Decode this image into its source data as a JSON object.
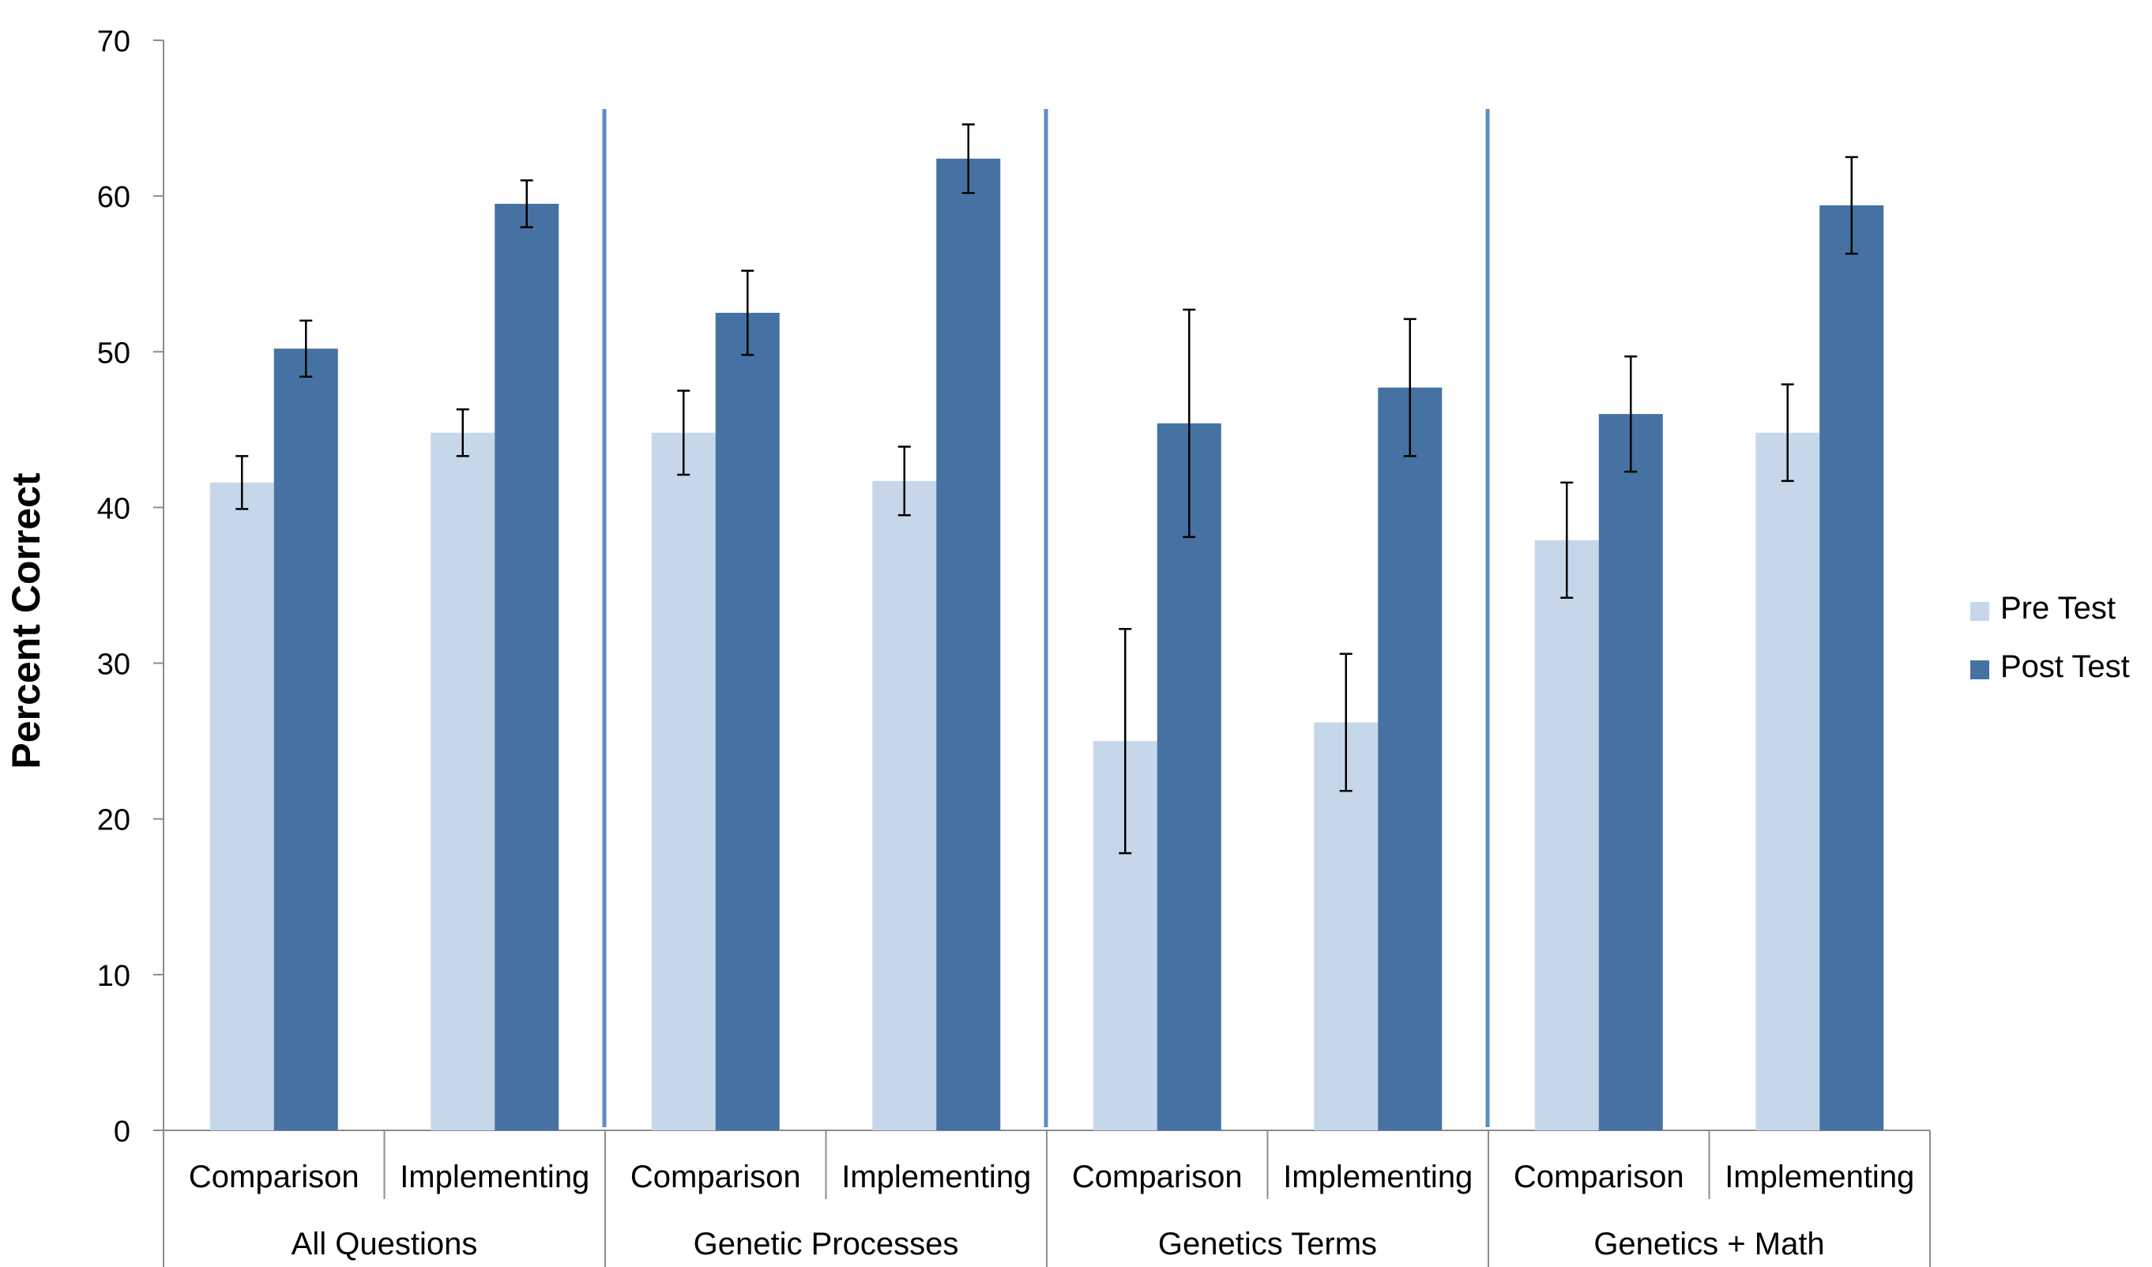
{
  "chart_data": {
    "type": "bar",
    "ylabel": "Percent Correct",
    "xlabel": "",
    "ylim": [
      0,
      70
    ],
    "yticks": [
      0,
      10,
      20,
      30,
      40,
      50,
      60,
      70
    ],
    "grid": false,
    "legend_position": "right",
    "groups": [
      {
        "label": "All Questions",
        "categories": [
          "Comparison",
          "Implementing"
        ]
      },
      {
        "label": "Genetic Processes",
        "categories": [
          "Comparison",
          "Implementing"
        ]
      },
      {
        "label": "Genetics Terms",
        "categories": [
          "Comparison",
          "Implementing"
        ]
      },
      {
        "label": "Genetics + Math",
        "categories": [
          "Comparison",
          "Implementing"
        ]
      }
    ],
    "categories": [
      "Comparison",
      "Implementing",
      "Comparison",
      "Implementing",
      "Comparison",
      "Implementing",
      "Comparison",
      "Implementing"
    ],
    "series": [
      {
        "name": "Pre Test",
        "color": "#c6d7ea",
        "values": [
          41.6,
          44.8,
          44.8,
          41.7,
          25.0,
          26.2,
          37.9,
          44.8
        ],
        "error": [
          1.7,
          1.5,
          2.7,
          2.2,
          7.2,
          4.4,
          3.7,
          3.1
        ]
      },
      {
        "name": "Post Test",
        "color": "#4572a3",
        "values": [
          50.2,
          59.5,
          52.5,
          62.4,
          45.4,
          47.7,
          46.0,
          59.4
        ],
        "error": [
          1.8,
          1.5,
          2.7,
          2.2,
          7.3,
          4.4,
          3.7,
          3.1
        ]
      }
    ]
  }
}
